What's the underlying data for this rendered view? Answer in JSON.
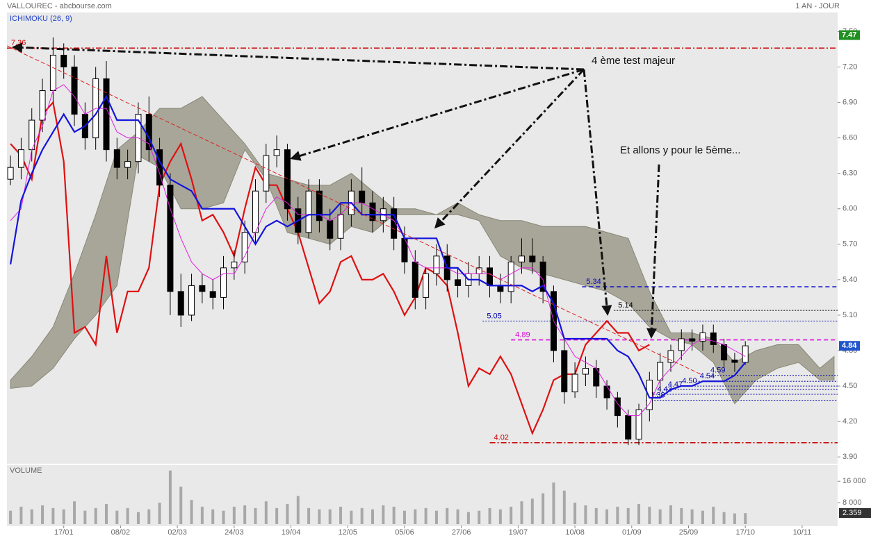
{
  "chart_data": {
    "type": "candlestick",
    "title": "VALLOUREC - abcbourse.com",
    "indicator": "ICHIMOKU (26, 9)",
    "period": "1 AN - JOUR",
    "x": [
      0,
      3,
      6,
      9,
      12,
      15,
      18,
      21,
      24,
      27,
      30,
      33,
      36,
      39,
      42,
      45,
      48,
      51,
      54,
      57,
      60,
      63,
      66,
      69,
      72,
      75,
      78,
      81,
      84,
      87,
      90,
      93,
      96,
      99,
      102,
      105,
      108,
      111,
      114,
      117,
      120,
      123,
      126,
      129,
      132,
      135,
      138,
      141,
      144,
      147,
      150,
      153,
      156,
      159,
      162,
      165,
      168,
      171,
      174,
      177,
      180,
      183,
      186,
      189,
      192,
      195,
      198,
      201,
      204,
      207
    ],
    "open": [
      6.25,
      6.35,
      6.5,
      6.75,
      7.0,
      7.3,
      7.2,
      6.8,
      6.6,
      7.1,
      6.5,
      6.35,
      6.4,
      6.8,
      6.5,
      6.2,
      5.3,
      5.1,
      5.35,
      5.3,
      5.25,
      5.5,
      5.55,
      5.8,
      6.15,
      6.45,
      6.5,
      6.0,
      5.8,
      6.15,
      5.9,
      5.75,
      5.95,
      6.15,
      6.05,
      5.9,
      6.0,
      5.75,
      5.55,
      5.25,
      5.45,
      5.6,
      5.4,
      5.35,
      5.45,
      5.5,
      5.35,
      5.3,
      5.55,
      5.6,
      5.55,
      5.3,
      4.8,
      4.45,
      4.6,
      4.65,
      4.5,
      4.4,
      4.25,
      4.05,
      4.3,
      4.55,
      4.7,
      4.8,
      4.9,
      4.88,
      4.95,
      4.85,
      4.72,
      4.7
    ],
    "high": [
      6.45,
      6.6,
      6.85,
      7.1,
      7.45,
      7.4,
      7.3,
      6.9,
      7.2,
      7.25,
      6.6,
      6.5,
      6.9,
      6.95,
      6.6,
      6.3,
      5.45,
      5.45,
      5.45,
      5.4,
      5.6,
      5.65,
      5.9,
      6.25,
      6.55,
      6.62,
      6.55,
      6.1,
      6.25,
      6.25,
      6.0,
      6.05,
      6.25,
      6.35,
      6.15,
      6.1,
      6.1,
      5.85,
      5.65,
      5.5,
      5.7,
      5.7,
      5.5,
      5.55,
      5.6,
      5.6,
      5.45,
      5.6,
      5.75,
      5.75,
      5.6,
      5.35,
      4.9,
      4.7,
      4.75,
      4.72,
      4.55,
      4.45,
      4.3,
      4.35,
      4.62,
      4.78,
      4.85,
      4.98,
      4.98,
      5.02,
      5.02,
      4.9,
      4.78,
      4.88
    ],
    "low": [
      6.2,
      6.25,
      6.4,
      6.65,
      6.9,
      7.1,
      6.7,
      6.5,
      6.5,
      6.4,
      6.25,
      6.25,
      6.3,
      6.4,
      6.1,
      5.1,
      5.0,
      5.05,
      5.2,
      5.15,
      5.15,
      5.4,
      5.45,
      5.7,
      6.05,
      6.35,
      5.9,
      5.7,
      5.75,
      5.8,
      5.65,
      5.65,
      5.85,
      5.95,
      5.8,
      5.8,
      5.65,
      5.45,
      5.15,
      5.15,
      5.35,
      5.3,
      5.25,
      5.25,
      5.35,
      5.25,
      5.2,
      5.2,
      5.45,
      5.45,
      5.2,
      4.7,
      4.35,
      4.4,
      4.5,
      4.4,
      4.3,
      4.15,
      4.0,
      4.0,
      4.2,
      4.45,
      4.62,
      4.72,
      4.8,
      4.8,
      4.78,
      4.65,
      4.62,
      4.68
    ],
    "close": [
      6.35,
      6.5,
      6.75,
      7.0,
      7.3,
      7.2,
      6.8,
      6.6,
      7.1,
      6.5,
      6.35,
      6.4,
      6.8,
      6.5,
      6.2,
      5.3,
      5.1,
      5.35,
      5.3,
      5.25,
      5.5,
      5.55,
      5.8,
      6.15,
      6.45,
      6.5,
      6.0,
      5.8,
      6.15,
      5.9,
      5.75,
      5.95,
      6.15,
      6.05,
      5.9,
      6.0,
      5.75,
      5.55,
      5.25,
      5.45,
      5.6,
      5.4,
      5.35,
      5.45,
      5.5,
      5.35,
      5.3,
      5.55,
      5.6,
      5.55,
      5.3,
      4.8,
      4.45,
      4.6,
      4.65,
      4.5,
      4.4,
      4.25,
      4.05,
      4.3,
      4.55,
      4.7,
      4.8,
      4.9,
      4.88,
      4.95,
      4.85,
      4.72,
      4.7,
      4.84
    ],
    "xlim": [
      -1,
      233
    ],
    "xticks": [
      {
        "value": 15,
        "label": "17/01"
      },
      {
        "value": 31,
        "label": "08/02"
      },
      {
        "value": 47,
        "label": "02/03"
      },
      {
        "value": 63,
        "label": "24/03"
      },
      {
        "value": 79,
        "label": "19/04"
      },
      {
        "value": 95,
        "label": "12/05"
      },
      {
        "value": 111,
        "label": "05/06"
      },
      {
        "value": 127,
        "label": "27/06"
      },
      {
        "value": 143,
        "label": "19/07"
      },
      {
        "value": 159,
        "label": "10/08"
      },
      {
        "value": 175,
        "label": "01/09"
      },
      {
        "value": 191,
        "label": "25/09"
      },
      {
        "value": 207,
        "label": "17/10"
      },
      {
        "value": 223,
        "label": "10/11"
      }
    ],
    "ylim": [
      3.86,
      7.62
    ],
    "yticks": [
      {
        "value": 3.9,
        "label": "3.90"
      },
      {
        "value": 4.2,
        "label": "4.20"
      },
      {
        "value": 4.5,
        "label": "4.50"
      },
      {
        "value": 4.8,
        "label": "4.80"
      },
      {
        "value": 5.1,
        "label": "5.10"
      },
      {
        "value": 5.4,
        "label": "5.40"
      },
      {
        "value": 5.7,
        "label": "5.70"
      },
      {
        "value": 6.0,
        "label": "6.00"
      },
      {
        "value": 6.3,
        "label": "6.30"
      },
      {
        "value": 6.6,
        "label": "6.60"
      },
      {
        "value": 6.9,
        "label": "6.90"
      },
      {
        "value": 7.2,
        "label": "7.20"
      },
      {
        "value": 7.5,
        "label": "7.50"
      }
    ],
    "ichimoku": {
      "tenkan": {
        "color": "#e020e0",
        "values": [
          5.9,
          6.0,
          6.5,
          6.7,
          7.0,
          7.05,
          6.95,
          6.8,
          6.85,
          6.85,
          6.65,
          6.6,
          6.6,
          6.55,
          6.3,
          6.0,
          5.75,
          5.55,
          5.45,
          5.4,
          5.45,
          5.45,
          5.6,
          5.8,
          6.0,
          6.1,
          6.05,
          5.95,
          5.95,
          5.95,
          5.9,
          5.95,
          6.05,
          6.05,
          6.0,
          5.95,
          5.9,
          5.75,
          5.55,
          5.5,
          5.5,
          5.5,
          5.45,
          5.45,
          5.45,
          5.45,
          5.4,
          5.45,
          5.5,
          5.5,
          5.4,
          5.05,
          4.9,
          4.75,
          4.7,
          4.65,
          4.5,
          4.35,
          4.25,
          4.25,
          4.35,
          4.55,
          4.65,
          4.75,
          4.85,
          4.9,
          4.88,
          4.85,
          4.8,
          4.75
        ]
      },
      "kijun": {
        "color": "#1414dc",
        "values": [
          5.53,
          6.07,
          6.3,
          6.5,
          6.65,
          6.8,
          6.65,
          6.7,
          6.8,
          6.95,
          6.75,
          6.75,
          6.75,
          6.6,
          6.4,
          6.25,
          6.2,
          6.15,
          6.0,
          6.0,
          6.0,
          6.0,
          5.85,
          5.7,
          5.85,
          5.9,
          5.85,
          5.9,
          5.95,
          5.95,
          5.95,
          6.05,
          6.05,
          5.95,
          5.95,
          5.95,
          5.95,
          5.75,
          5.75,
          5.75,
          5.75,
          5.5,
          5.5,
          5.4,
          5.4,
          5.35,
          5.35,
          5.35,
          5.35,
          5.3,
          5.35,
          5.2,
          4.9,
          4.9,
          4.9,
          4.9,
          4.9,
          4.8,
          4.75,
          4.6,
          4.4,
          4.4,
          4.47,
          4.5,
          4.5,
          4.54,
          4.54,
          4.54,
          4.59,
          4.7
        ]
      },
      "chikou": {
        "color": "#e01010",
        "values": [
          6.55,
          6.45,
          6.25,
          6.8,
          6.9,
          6.4,
          4.95,
          5.0,
          4.85,
          5.6,
          4.95,
          5.3,
          5.3,
          5.5,
          6.2,
          6.4,
          6.55,
          6.25,
          5.9,
          5.95,
          5.8,
          5.6,
          6.0,
          6.35,
          6.2,
          6.2,
          6.0,
          5.8,
          5.5,
          5.2,
          5.3,
          5.55,
          5.6,
          5.4,
          5.4,
          5.45,
          5.3,
          5.1,
          5.25,
          5.5,
          5.45,
          5.35,
          4.95,
          4.5,
          4.65,
          4.6,
          4.75,
          4.6,
          4.35,
          4.1,
          4.3,
          4.55,
          4.6,
          4.6,
          4.85,
          4.95,
          5.05,
          4.95,
          4.95,
          4.8,
          4.85,
          null,
          null,
          null,
          null,
          null,
          null,
          null,
          null,
          null
        ]
      },
      "cloud": {
        "color": "#a09f90",
        "x": [
          0,
          6,
          12,
          18,
          24,
          30,
          36,
          42,
          48,
          54,
          60,
          66,
          72,
          78,
          84,
          90,
          96,
          102,
          108,
          114,
          120,
          126,
          132,
          138,
          144,
          150,
          156,
          162,
          168,
          174,
          180,
          186,
          192,
          198,
          204,
          210,
          216,
          222,
          228,
          232
        ],
        "upper": [
          4.55,
          4.75,
          5.0,
          5.45,
          5.95,
          6.5,
          6.65,
          6.85,
          6.85,
          6.95,
          6.75,
          6.55,
          6.3,
          6.25,
          6.2,
          6.2,
          6.3,
          6.15,
          6.0,
          6.0,
          5.95,
          6.05,
          5.95,
          5.9,
          5.9,
          5.85,
          5.85,
          5.85,
          5.8,
          5.75,
          5.3,
          4.95,
          4.95,
          4.9,
          4.7,
          4.8,
          4.85,
          4.85,
          4.65,
          4.75
        ],
        "lower": [
          4.48,
          4.5,
          4.65,
          4.9,
          5.1,
          5.35,
          6.45,
          6.35,
          6.0,
          6.0,
          6.05,
          6.5,
          6.25,
          5.8,
          5.75,
          5.7,
          5.85,
          5.8,
          5.95,
          5.95,
          5.95,
          5.95,
          5.9,
          5.6,
          5.5,
          5.45,
          5.4,
          5.35,
          5.3,
          5.2,
          5.0,
          4.9,
          4.85,
          4.7,
          4.35,
          4.55,
          4.65,
          4.7,
          4.55,
          4.55
        ]
      }
    },
    "levels": [
      {
        "value": 7.36,
        "from": -1,
        "color": "#cc0000",
        "style": "dashdot"
      },
      {
        "value": 5.34,
        "from": 161,
        "color": "#0000cc",
        "style": "dash"
      },
      {
        "value": 5.14,
        "from": 170,
        "color": "#000000",
        "style": "dot"
      },
      {
        "value": 5.05,
        "from": 133,
        "color": "#0000aa",
        "style": "dot"
      },
      {
        "value": 4.89,
        "from": 141,
        "color": "#dd00dd",
        "style": "dash"
      },
      {
        "value": 4.02,
        "from": 135,
        "color": "#cc0000",
        "style": "dashdot"
      },
      {
        "value": 4.59,
        "from": 196,
        "color": "#0000aa",
        "style": "dot"
      },
      {
        "value": 4.54,
        "from": 193,
        "color": "#0000aa",
        "style": "dot"
      },
      {
        "value": 4.5,
        "label": "4.50",
        "from": 188,
        "color": "#0000aa",
        "style": "dot"
      },
      {
        "value": 4.47,
        "from": 184,
        "color": "#0000aa",
        "style": "dot"
      },
      {
        "value": 4.43,
        "from": 181,
        "color": "#0000aa",
        "style": "dot"
      },
      {
        "value": 4.38,
        "from": 179,
        "color": "#0000aa",
        "style": "dot"
      }
    ],
    "price_labels": [
      {
        "value": 7.47,
        "color": "#1f8f1f"
      },
      {
        "value": 4.84,
        "color": "#2255cc"
      }
    ],
    "annotations": [
      "4 ème test majeur",
      "Et allons y pour le 5ème..."
    ],
    "volume": {
      "title": "VOLUME",
      "color": "#a8a8a8",
      "values": [
        5000,
        6500,
        5500,
        7000,
        6000,
        5500,
        8500,
        5000,
        6000,
        7500,
        5000,
        6000,
        4500,
        5500,
        8000,
        20000,
        14000,
        9000,
        6500,
        5500,
        5000,
        6500,
        7000,
        6000,
        8500,
        6000,
        7500,
        10500,
        6000,
        5500,
        5500,
        6500,
        5000,
        6000,
        5500,
        7000,
        6500,
        5000,
        5500,
        6000,
        5000,
        6000,
        5500,
        4500,
        5000,
        6000,
        5500,
        6500,
        8500,
        9500,
        11500,
        15500,
        12500,
        8000,
        7000,
        6000,
        5500,
        6500,
        6000,
        7500,
        6500,
        5500,
        7000,
        6000,
        5500,
        5000,
        6500,
        4500,
        4000,
        4100
      ],
      "ylim": [
        0,
        21500
      ],
      "yticks": [
        {
          "value": 8000,
          "label": "8 000"
        },
        {
          "value": 16000,
          "label": "16 000"
        }
      ],
      "last_label": "2.359"
    }
  }
}
